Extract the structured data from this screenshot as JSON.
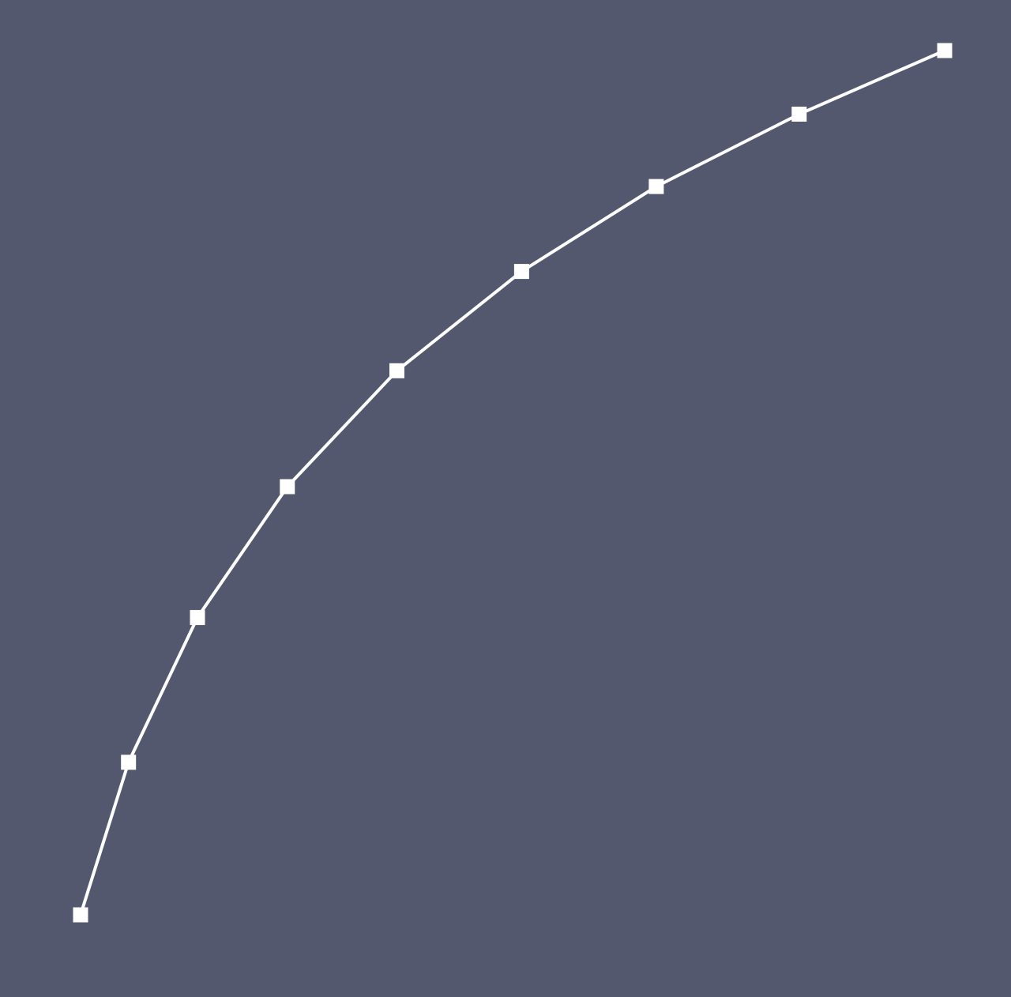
{
  "colors": {
    "background": "#53586e",
    "series_line": "#ffffff",
    "marker": "#ffffff"
  },
  "chart_data": {
    "type": "line",
    "title": "",
    "xlabel": "",
    "ylabel": "",
    "grid": false,
    "legend": "none",
    "axes_visible": false,
    "xlim": [
      0,
      1
    ],
    "ylim": [
      0,
      1
    ],
    "series": [
      {
        "marker": "square",
        "x": [
          0,
          0.0555,
          0.1353,
          0.2393,
          0.3661,
          0.5104,
          0.6663,
          0.8316,
          1.0
        ],
        "y": [
          0,
          0.1765,
          0.3441,
          0.4954,
          0.6295,
          0.7444,
          0.8427,
          0.9264,
          1.0
        ]
      }
    ]
  }
}
